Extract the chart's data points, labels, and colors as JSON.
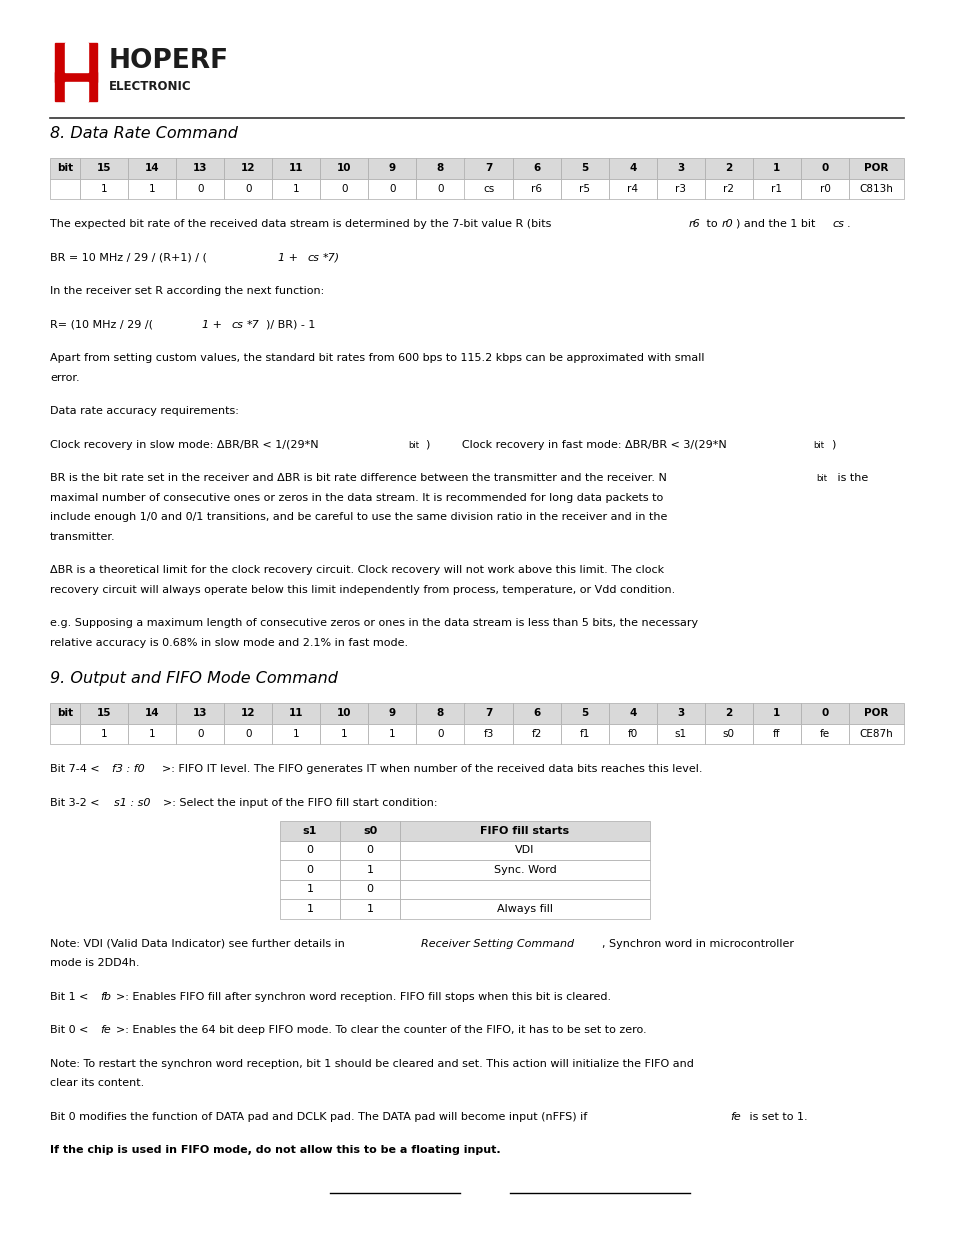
{
  "title": "8. Data Rate Command",
  "title2": "9. Output and FIFO Mode Command",
  "section1_table_header": [
    "bit",
    "15",
    "14",
    "13",
    "12",
    "11",
    "10",
    "9",
    "8",
    "7",
    "6",
    "5",
    "4",
    "3",
    "2",
    "1",
    "0",
    "POR"
  ],
  "section1_table_row1": [
    "",
    "1",
    "1",
    "0",
    "0",
    "1",
    "0",
    "0",
    "0",
    "cs",
    "r6",
    "r5",
    "r4",
    "r3",
    "r2",
    "r1",
    "r0",
    "C813h"
  ],
  "section2_table_header": [
    "bit",
    "15",
    "14",
    "13",
    "12",
    "11",
    "10",
    "9",
    "8",
    "7",
    "6",
    "5",
    "4",
    "3",
    "2",
    "1",
    "0",
    "POR"
  ],
  "section2_table_row1": [
    "",
    "1",
    "1",
    "0",
    "0",
    "1",
    "1",
    "1",
    "0",
    "f3",
    "f2",
    "f1",
    "f0",
    "s1",
    "s0",
    "ff",
    "fe",
    "CE87h"
  ],
  "fifo_table_header": [
    "s1",
    "s0",
    "FIFO fill starts"
  ],
  "fifo_table_rows": [
    [
      "0",
      "0",
      "VDI"
    ],
    [
      "0",
      "1",
      "Sync. Word"
    ],
    [
      "1",
      "0",
      ""
    ],
    [
      "1",
      "1",
      "Always fill"
    ]
  ],
  "background_color": "#ffffff",
  "text_color": "#000000",
  "table_border_color": "#888888",
  "header_bg_color": "#d9d9d9",
  "red_color": "#cc0000"
}
